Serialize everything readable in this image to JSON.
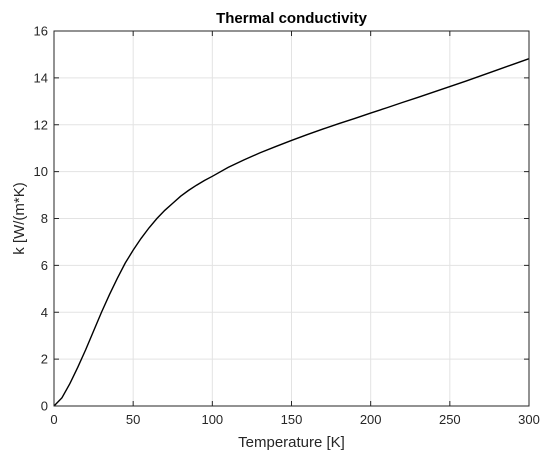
{
  "chart_data": {
    "type": "line",
    "title": "Thermal conductivity",
    "xlabel": "Temperature [K]",
    "ylabel": "k [W/(m*K)",
    "xlim": [
      0,
      300
    ],
    "ylim": [
      0,
      16
    ],
    "xticks": [
      0,
      50,
      100,
      150,
      200,
      250,
      300
    ],
    "yticks": [
      0,
      2,
      4,
      6,
      8,
      10,
      12,
      14,
      16
    ],
    "grid": true,
    "series": [
      {
        "color": "#000000",
        "x": [
          0,
          5,
          10,
          15,
          20,
          25,
          30,
          35,
          40,
          45,
          50,
          55,
          60,
          65,
          70,
          75,
          80,
          85,
          90,
          95,
          100,
          110,
          120,
          130,
          140,
          150,
          160,
          170,
          180,
          190,
          200,
          210,
          220,
          230,
          240,
          250,
          260,
          270,
          280,
          290,
          300
        ],
        "y": [
          0,
          0.35,
          0.95,
          1.65,
          2.4,
          3.2,
          4.0,
          4.75,
          5.45,
          6.1,
          6.65,
          7.15,
          7.6,
          8.0,
          8.35,
          8.65,
          8.95,
          9.2,
          9.42,
          9.62,
          9.8,
          10.18,
          10.5,
          10.8,
          11.07,
          11.33,
          11.58,
          11.82,
          12.05,
          12.27,
          12.5,
          12.72,
          12.95,
          13.17,
          13.4,
          13.63,
          13.86,
          14.1,
          14.34,
          14.58,
          14.82
        ]
      }
    ]
  }
}
